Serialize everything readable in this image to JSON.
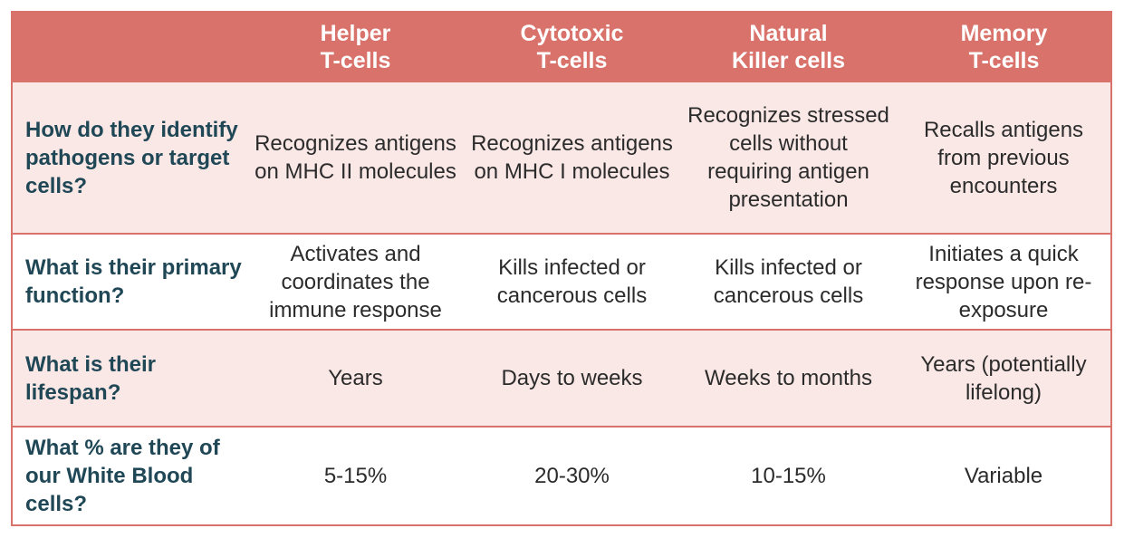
{
  "colors": {
    "header_bg": "#d8726a",
    "header_text": "#ffffff",
    "tint_row_bg": "#fae8e6",
    "row_label_text": "#1f4756",
    "body_text": "#2b2b2b",
    "border": "#d8726a"
  },
  "table": {
    "corner": "",
    "columns": [
      "Helper\nT-cells",
      "Cytotoxic\nT-cells",
      "Natural\nKiller cells",
      "Memory\nT-cells"
    ],
    "rows": [
      {
        "question": "How do they identify pathogens or target cells?",
        "cells": [
          "Recognizes antigens on MHC II molecules",
          "Recognizes antigens on MHC I molecules",
          "Recognizes stressed cells without requiring antigen presentation",
          "Recalls antigens from previous encounters"
        ]
      },
      {
        "question": "What is their primary function?",
        "cells": [
          "Activates and coordinates the immune response",
          "Kills infected or cancerous cells",
          "Kills infected or cancerous cells",
          "Initiates a quick response upon re-exposure"
        ]
      },
      {
        "question": "What is their lifespan?",
        "cells": [
          "Years",
          "Days to weeks",
          "Weeks to months",
          "Years (potentially lifelong)"
        ]
      },
      {
        "question": "What % are they of our White Blood cells?",
        "cells": [
          "5-15%",
          "20-30%",
          "10-15%",
          "Variable"
        ]
      }
    ]
  }
}
